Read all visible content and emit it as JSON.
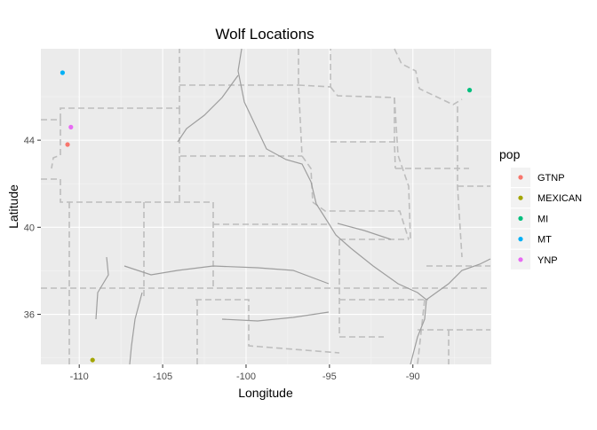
{
  "chart_data": {
    "type": "scatter",
    "title": "Wolf Locations",
    "xlabel": "Longitude",
    "ylabel": "Latitude",
    "xlim": [
      -112.3,
      -85.3
    ],
    "ylim": [
      33.7,
      48.2
    ],
    "x_ticks": [
      -110,
      -105,
      -100,
      -95,
      -90
    ],
    "x_tick_labels": [
      "-110",
      "-105",
      "-100",
      "-95",
      "-90"
    ],
    "y_ticks": [
      36,
      40,
      44
    ],
    "y_tick_labels": [
      "36",
      "40",
      "44"
    ],
    "grid": true,
    "basemap": "US state boundaries and rivers (gray)",
    "legend": {
      "title": "pop",
      "placement": "right",
      "entries": [
        {
          "label": "GTNP",
          "color": "#F8766D"
        },
        {
          "label": "MEXICAN",
          "color": "#A3A500"
        },
        {
          "label": "MI",
          "color": "#00BF7D"
        },
        {
          "label": "MT",
          "color": "#00B0F6"
        },
        {
          "label": "YNP",
          "color": "#E76BF3"
        }
      ]
    },
    "series": [
      {
        "name": "GTNP",
        "points": [
          {
            "x": -110.7,
            "y": 43.8
          }
        ]
      },
      {
        "name": "MEXICAN",
        "points": [
          {
            "x": -109.2,
            "y": 33.9
          }
        ]
      },
      {
        "name": "MI",
        "points": [
          {
            "x": -86.6,
            "y": 46.3
          }
        ]
      },
      {
        "name": "MT",
        "points": [
          {
            "x": -111.0,
            "y": 47.1
          }
        ]
      },
      {
        "name": "YNP",
        "points": [
          {
            "x": -110.5,
            "y": 44.6
          }
        ]
      }
    ]
  }
}
